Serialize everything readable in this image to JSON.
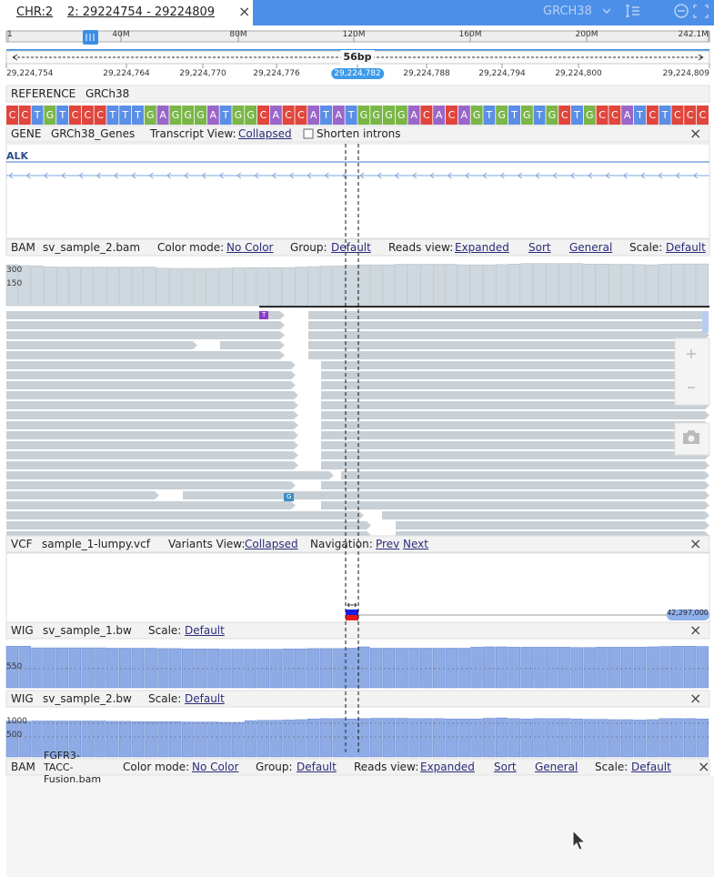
{
  "header": {
    "chr": "CHR:2",
    "locus": "2: 29224754 - 29224809",
    "close": "×",
    "genome": "GRCH38"
  },
  "ideogram": {
    "ticks": [
      "1",
      "40M",
      "80M",
      "120M",
      "160M",
      "200M",
      "242.1M"
    ]
  },
  "ruler": {
    "span": "56bp",
    "ticks": [
      "29,224,754",
      "29,224,764",
      "29,224,770",
      "29,224,776",
      "29,224,782",
      "29,224,788",
      "29,224,794",
      "29,224,800",
      "29,224,809"
    ]
  },
  "reference": {
    "label": "REFERENCE",
    "genome": "GRCh38",
    "sequence": "CCTGTCCCTTTGAGGGATGGCACCATATGGGGACACAGTGTGTGCTGCCATCTCCC"
  },
  "gene_track": {
    "type": "GENE",
    "name": "GRCh38_Genes",
    "view_label": "Transcript View:",
    "view": "Collapsed",
    "shorten": "Shorten introns",
    "gene": "ALK",
    "close": "×"
  },
  "bam_track": {
    "type": "BAM",
    "name": "sv_sample_2.bam",
    "color_label": "Color mode:",
    "color": "No Color",
    "group_label": "Group:",
    "group": "Default",
    "reads_label": "Reads view:",
    "reads": "Expanded",
    "sort": "Sort",
    "general": "General",
    "scale_label": "Scale:",
    "scale": "Default",
    "ticks": [
      "300",
      "150"
    ],
    "ylim": [
      0,
      340
    ],
    "values": [
      318,
      312,
      310,
      302,
      300,
      300,
      300,
      300,
      300,
      300,
      300,
      300,
      292,
      290,
      290,
      290,
      290,
      292,
      295,
      296,
      296,
      296,
      296,
      300,
      304,
      308,
      310,
      314,
      318,
      318,
      318,
      322,
      322,
      322,
      322,
      322,
      318,
      318,
      318,
      320,
      324,
      328,
      328,
      328,
      328,
      328,
      324,
      324,
      322,
      322,
      320,
      318,
      322,
      325,
      325,
      325
    ],
    "read_bases": [
      "T",
      "G"
    ]
  },
  "vcf_track": {
    "type": "VCF",
    "name": "sample_1-lumpy.vcf",
    "view_label": "Variants View:",
    "view": "Collapsed",
    "nav_label": "Navigation:",
    "prev": "Prev",
    "next": "Next",
    "end_label": "42,297,000",
    "close": "×"
  },
  "wig_tracks": [
    {
      "type": "WIG",
      "name": "sv_sample_1.bw",
      "scale_label": "Scale:",
      "scale": "Default",
      "ticks": [
        "550"
      ],
      "ylim": [
        0,
        640
      ],
      "close": "×",
      "values": [
        610,
        610,
        585,
        585,
        585,
        585,
        585,
        585,
        580,
        580,
        580,
        580,
        575,
        575,
        570,
        570,
        570,
        565,
        565,
        565,
        565,
        565,
        570,
        570,
        575,
        575,
        575,
        580,
        600,
        580,
        580,
        580,
        580,
        580,
        580,
        580,
        580,
        595,
        600,
        600,
        595,
        595,
        595,
        595,
        595,
        590,
        590,
        595,
        595,
        595,
        595,
        600,
        605,
        610,
        610,
        605
      ]
    },
    {
      "type": "WIG",
      "name": "sv_sample_2.bw",
      "scale_label": "Scale:",
      "scale": "Default",
      "ticks": [
        "1000",
        "500"
      ],
      "ylim": [
        0,
        1250
      ],
      "close": "×",
      "values": [
        1050,
        1040,
        1050,
        1050,
        1050,
        1050,
        1050,
        1050,
        1040,
        1040,
        1030,
        1030,
        1030,
        1030,
        1020,
        1020,
        1020,
        1010,
        1010,
        1060,
        1070,
        1070,
        1080,
        1090,
        1110,
        1120,
        1120,
        1110,
        1120,
        1130,
        1130,
        1130,
        1120,
        1120,
        1120,
        1110,
        1110,
        1110,
        1130,
        1140,
        1120,
        1110,
        1120,
        1120,
        1120,
        1110,
        1100,
        1100,
        1090,
        1090,
        1080,
        1090,
        1120,
        1120,
        1120,
        1110
      ]
    }
  ],
  "bam2_track": {
    "type": "BAM",
    "name": "FGFR3-TACC-Fusion.bam",
    "color_label": "Color mode:",
    "color": "No Color",
    "group_label": "Group:",
    "group": "Default",
    "reads_label": "Reads view:",
    "reads": "Expanded",
    "sort": "Sort",
    "general": "General",
    "scale_label": "Scale:",
    "scale": "Default",
    "close": "×"
  }
}
